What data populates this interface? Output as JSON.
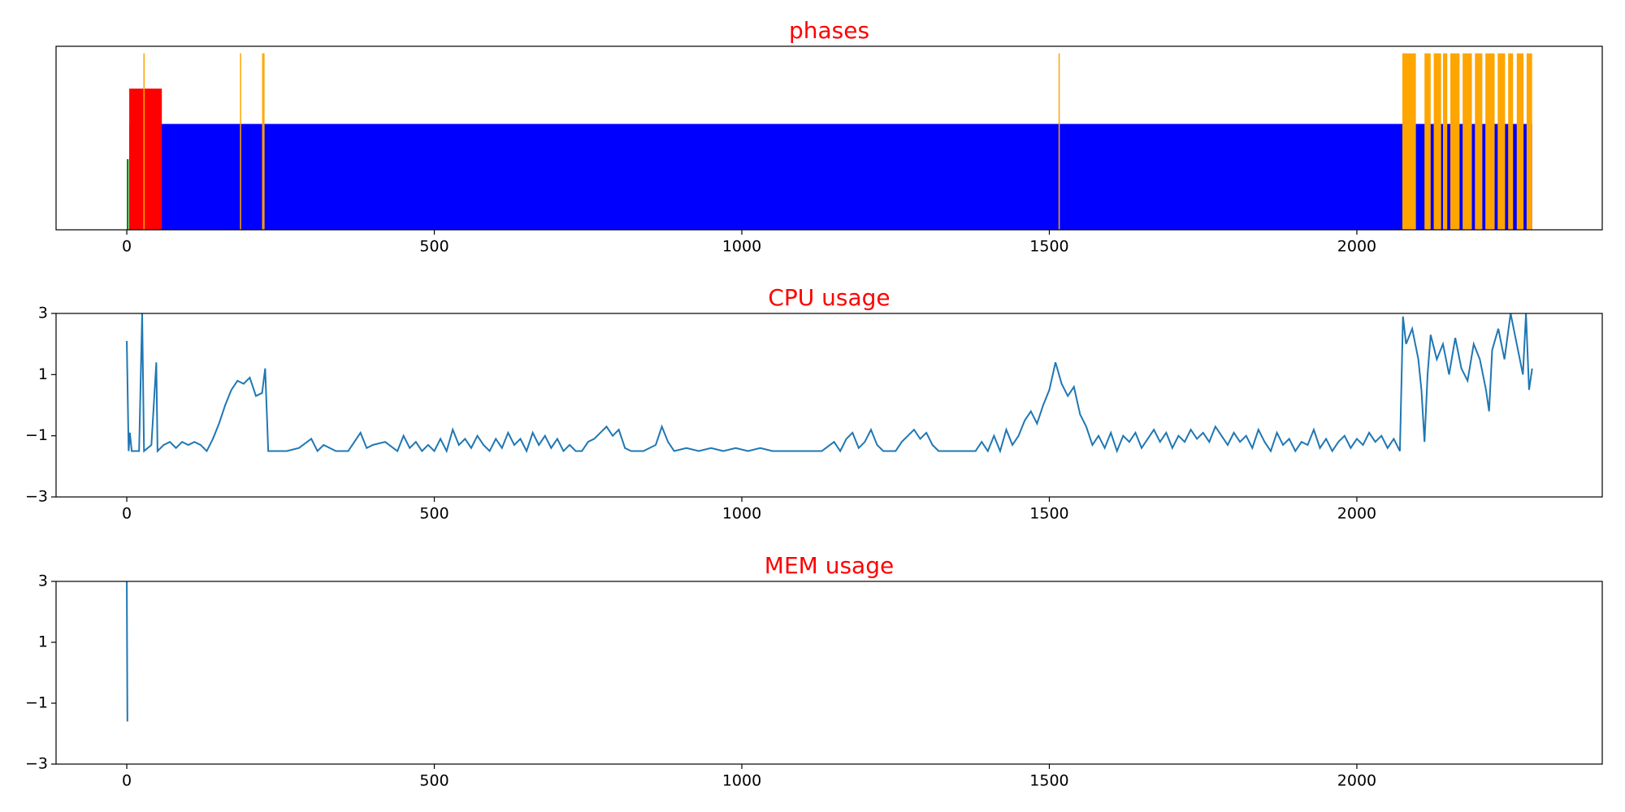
{
  "chart_data": [
    {
      "type": "bar",
      "title": "phases",
      "title_color": "red",
      "xlim": [
        -115,
        2399
      ],
      "xticks": [
        0,
        500,
        1000,
        1500,
        2000
      ],
      "ylim": [
        0,
        5.2
      ],
      "series": [
        {
          "color": "blue",
          "x": [
            4
          ],
          "x_end": [
            2285
          ],
          "values": [
            3
          ]
        },
        {
          "color": "red",
          "x": [
            4
          ],
          "x_end": [
            57
          ],
          "values": [
            4
          ]
        },
        {
          "color": "green",
          "x": [
            0
          ],
          "x_end": [
            3
          ],
          "values": [
            2
          ]
        },
        {
          "color": "orange",
          "x": [
            27,
            184,
            220,
            222,
            1515,
            2074,
            2110,
            2125,
            2140,
            2152,
            2172,
            2192,
            2209,
            2229,
            2246,
            2260,
            2276
          ],
          "x_end": [
            28,
            185,
            221,
            223,
            1516,
            2096,
            2120,
            2137,
            2147,
            2167,
            2187,
            2204,
            2224,
            2241,
            2254,
            2271,
            2285
          ],
          "values": [
            5,
            5,
            5,
            5,
            5,
            5,
            5,
            5,
            5,
            5,
            5,
            5,
            5,
            5,
            5,
            5,
            5
          ]
        }
      ]
    },
    {
      "type": "line",
      "title": "CPU usage",
      "title_color": "red",
      "xlim": [
        -115,
        2399
      ],
      "xticks": [
        0,
        500,
        1000,
        1500,
        2000
      ],
      "ylim": [
        -3,
        3
      ],
      "yticks": [
        {
          "value": -3,
          "label": "−3"
        },
        {
          "value": -1,
          "label": "−1"
        },
        1,
        3
      ],
      "series": [
        {
          "color": "#1f77b4",
          "x": [
            0,
            3,
            5,
            8,
            20,
            25,
            28,
            40,
            48,
            50,
            60,
            70,
            80,
            90,
            100,
            110,
            120,
            130,
            140,
            150,
            160,
            170,
            180,
            190,
            200,
            210,
            220,
            225,
            230,
            240,
            260,
            280,
            300,
            310,
            320,
            340,
            360,
            380,
            390,
            400,
            420,
            440,
            450,
            460,
            470,
            480,
            490,
            500,
            510,
            520,
            530,
            540,
            550,
            560,
            570,
            580,
            590,
            600,
            610,
            620,
            630,
            640,
            650,
            660,
            670,
            680,
            690,
            700,
            710,
            720,
            730,
            740,
            750,
            760,
            770,
            780,
            790,
            800,
            810,
            820,
            840,
            860,
            870,
            880,
            890,
            910,
            930,
            950,
            970,
            990,
            1010,
            1030,
            1050,
            1070,
            1090,
            1110,
            1130,
            1150,
            1160,
            1170,
            1180,
            1190,
            1200,
            1210,
            1220,
            1230,
            1250,
            1260,
            1270,
            1280,
            1290,
            1300,
            1310,
            1320,
            1340,
            1360,
            1380,
            1390,
            1400,
            1410,
            1420,
            1430,
            1440,
            1450,
            1460,
            1470,
            1480,
            1490,
            1500,
            1510,
            1520,
            1530,
            1540,
            1550,
            1560,
            1570,
            1580,
            1590,
            1600,
            1610,
            1620,
            1630,
            1640,
            1650,
            1660,
            1670,
            1680,
            1690,
            1700,
            1710,
            1720,
            1730,
            1740,
            1750,
            1760,
            1770,
            1780,
            1790,
            1800,
            1810,
            1820,
            1830,
            1840,
            1850,
            1860,
            1870,
            1880,
            1890,
            1900,
            1910,
            1920,
            1930,
            1940,
            1950,
            1960,
            1970,
            1980,
            1990,
            2000,
            2010,
            2020,
            2030,
            2040,
            2050,
            2060,
            2070,
            2075,
            2080,
            2090,
            2100,
            2105,
            2110,
            2115,
            2120,
            2130,
            2140,
            2150,
            2160,
            2170,
            2180,
            2190,
            2200,
            2210,
            2215,
            2220,
            2230,
            2240,
            2250,
            2260,
            2270,
            2275,
            2280,
            2285
          ],
          "values": [
            2.1,
            -1.5,
            -0.9,
            -1.5,
            -1.5,
            3,
            -1.5,
            -1.3,
            1.4,
            -1.5,
            -1.3,
            -1.2,
            -1.4,
            -1.2,
            -1.3,
            -1.2,
            -1.3,
            -1.5,
            -1.1,
            -0.6,
            0,
            0.5,
            0.8,
            0.7,
            0.9,
            0.3,
            0.4,
            1.2,
            -1.5,
            -1.5,
            -1.5,
            -1.4,
            -1.1,
            -1.5,
            -1.3,
            -1.5,
            -1.5,
            -0.9,
            -1.4,
            -1.3,
            -1.2,
            -1.5,
            -1.0,
            -1.4,
            -1.2,
            -1.5,
            -1.3,
            -1.5,
            -1.1,
            -1.5,
            -0.8,
            -1.3,
            -1.1,
            -1.4,
            -1.0,
            -1.3,
            -1.5,
            -1.1,
            -1.4,
            -0.9,
            -1.3,
            -1.1,
            -1.5,
            -0.9,
            -1.3,
            -1.0,
            -1.4,
            -1.1,
            -1.5,
            -1.3,
            -1.5,
            -1.5,
            -1.2,
            -1.1,
            -0.9,
            -0.7,
            -1.0,
            -0.8,
            -1.4,
            -1.5,
            -1.5,
            -1.3,
            -0.7,
            -1.2,
            -1.5,
            -1.4,
            -1.5,
            -1.4,
            -1.5,
            -1.4,
            -1.5,
            -1.4,
            -1.5,
            -1.5,
            -1.5,
            -1.5,
            -1.5,
            -1.2,
            -1.5,
            -1.1,
            -0.9,
            -1.4,
            -1.2,
            -0.8,
            -1.3,
            -1.5,
            -1.5,
            -1.2,
            -1.0,
            -0.8,
            -1.1,
            -0.9,
            -1.3,
            -1.5,
            -1.5,
            -1.5,
            -1.5,
            -1.2,
            -1.5,
            -1.0,
            -1.5,
            -0.8,
            -1.3,
            -1.0,
            -0.5,
            -0.2,
            -0.6,
            0,
            0.5,
            1.4,
            0.7,
            0.3,
            0.6,
            -0.3,
            -0.7,
            -1.3,
            -1.0,
            -1.4,
            -0.9,
            -1.5,
            -1.0,
            -1.2,
            -0.9,
            -1.4,
            -1.1,
            -0.8,
            -1.2,
            -0.9,
            -1.4,
            -1.0,
            -1.2,
            -0.8,
            -1.1,
            -0.9,
            -1.2,
            -0.7,
            -1.0,
            -1.3,
            -0.9,
            -1.2,
            -1.0,
            -1.4,
            -0.8,
            -1.2,
            -1.5,
            -0.9,
            -1.3,
            -1.1,
            -1.5,
            -1.2,
            -1.3,
            -0.8,
            -1.4,
            -1.1,
            -1.5,
            -1.2,
            -1.0,
            -1.4,
            -1.1,
            -1.3,
            -0.9,
            -1.2,
            -1.0,
            -1.4,
            -1.1,
            -1.5,
            2.9,
            2.0,
            2.5,
            1.5,
            0.5,
            -1.2,
            1.0,
            2.3,
            1.5,
            2.0,
            1.0,
            2.2,
            1.2,
            0.8,
            2.0,
            1.5,
            0.5,
            -0.2,
            1.8,
            2.5,
            1.5,
            3.0,
            2.0,
            1.0,
            3.0,
            0.5,
            1.2
          ]
        }
      ]
    },
    {
      "type": "line",
      "title": "MEM usage",
      "title_color": "red",
      "xlim": [
        -115,
        2399
      ],
      "xticks": [
        0,
        500,
        1000,
        1500,
        2000
      ],
      "ylim": [
        -3,
        3
      ],
      "yticks": [
        {
          "value": -3,
          "label": "−3"
        },
        {
          "value": -1,
          "label": "−1"
        },
        1,
        3
      ],
      "series": [
        {
          "color": "#1f77b4",
          "x": [
            0,
            1
          ],
          "values": [
            3,
            -1.6
          ]
        }
      ]
    }
  ]
}
